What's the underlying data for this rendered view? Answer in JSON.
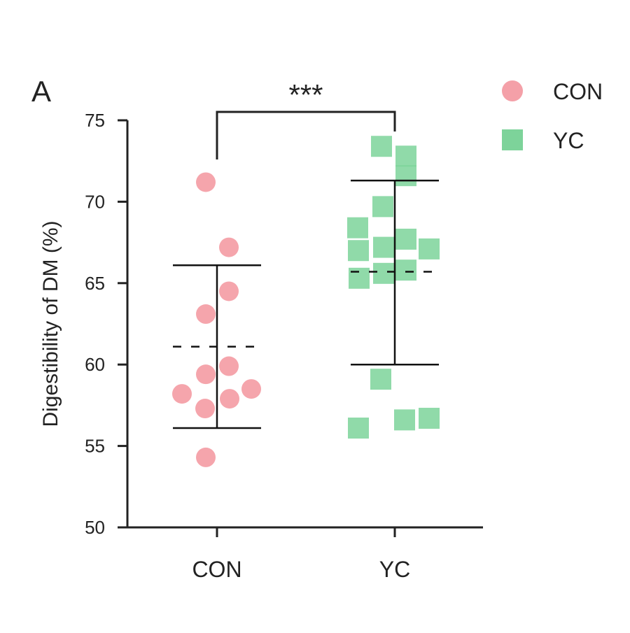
{
  "chart_data": {
    "type": "scatter",
    "panel_label": "A",
    "title": "",
    "xlabel": "",
    "ylabel": "Digestibility of DM (%)",
    "ylim": [
      50,
      75
    ],
    "yticks": [
      "50",
      "55",
      "60",
      "65",
      "70",
      "75"
    ],
    "categories": [
      "CON",
      "YC"
    ],
    "significance": "***",
    "legend": {
      "placement": "top-right",
      "entries": [
        "CON",
        "YC"
      ]
    },
    "series": [
      {
        "name": "CON",
        "marker": "circle",
        "color": "#F4A0A8",
        "values": [
          71.2,
          67.2,
          64.5,
          63.1,
          59.9,
          59.4,
          58.2,
          58.5,
          57.9,
          57.3,
          54.3
        ],
        "mean": 61.1,
        "sd_upper": 66.1,
        "sd_lower": 56.1
      },
      {
        "name": "YC",
        "marker": "square",
        "color": "#7DD39A",
        "values": [
          73.4,
          72.8,
          71.6,
          69.7,
          68.4,
          67.7,
          67.2,
          67.0,
          67.1,
          65.3,
          65.6,
          65.8,
          59.1,
          56.1,
          56.6,
          56.7
        ],
        "mean": 65.7,
        "sd_upper": 71.3,
        "sd_lower": 60.0
      }
    ]
  }
}
